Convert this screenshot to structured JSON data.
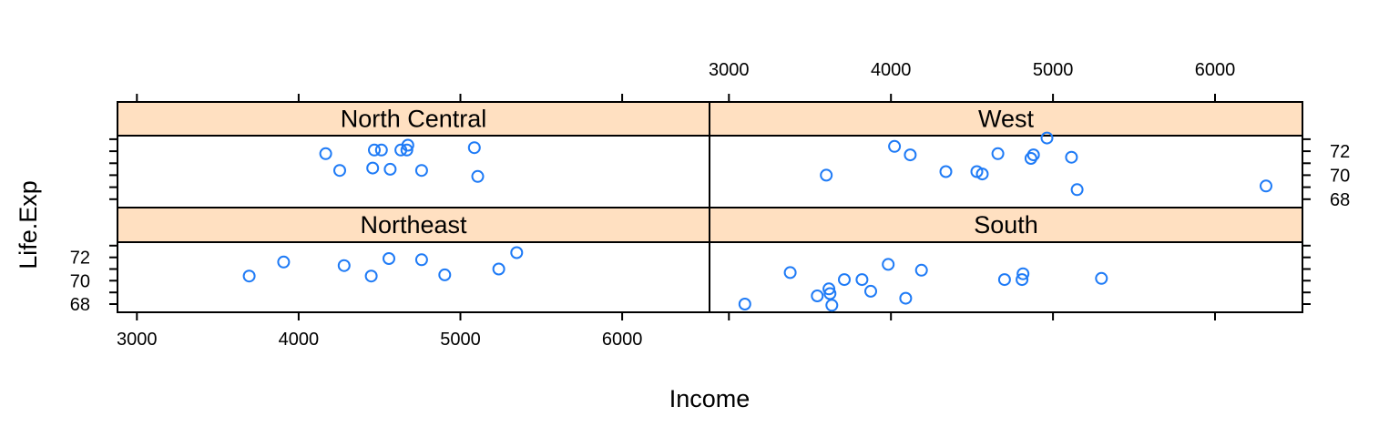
{
  "chart_data": {
    "type": "scatter",
    "xlabel": "Income",
    "ylabel": "Life.Exp",
    "xlim": [
      2880,
      6540
    ],
    "ylim": [
      67.3,
      73.3
    ],
    "x_ticks": [
      3000,
      4000,
      5000,
      6000
    ],
    "y_ticks": [
      68,
      70,
      72
    ],
    "colors": {
      "strip": "#FFE0C1",
      "point": "#1F7BF6",
      "frame": "#000000"
    },
    "panels": [
      {
        "name": "North Central",
        "points": [
          {
            "x": 4167,
            "y": 71.8
          },
          {
            "x": 4254,
            "y": 70.4
          },
          {
            "x": 4458,
            "y": 70.6
          },
          {
            "x": 4468,
            "y": 72.1
          },
          {
            "x": 4512,
            "y": 72.1
          },
          {
            "x": 4566,
            "y": 70.5
          },
          {
            "x": 4632,
            "y": 72.1
          },
          {
            "x": 4669,
            "y": 72.1
          },
          {
            "x": 4675,
            "y": 72.5
          },
          {
            "x": 4760,
            "y": 70.4
          },
          {
            "x": 5086,
            "y": 72.3
          },
          {
            "x": 5107,
            "y": 69.9
          }
        ]
      },
      {
        "name": "West",
        "points": [
          {
            "x": 3601,
            "y": 70.0
          },
          {
            "x": 4022,
            "y": 72.4
          },
          {
            "x": 4119,
            "y": 71.7
          },
          {
            "x": 4339,
            "y": 70.3
          },
          {
            "x": 4530,
            "y": 70.3
          },
          {
            "x": 4564,
            "y": 70.1
          },
          {
            "x": 4660,
            "y": 71.8
          },
          {
            "x": 4864,
            "y": 71.4
          },
          {
            "x": 4880,
            "y": 71.7
          },
          {
            "x": 4963,
            "y": 73.1
          },
          {
            "x": 5114,
            "y": 71.5
          },
          {
            "x": 5149,
            "y": 68.8
          },
          {
            "x": 6315,
            "y": 69.1
          }
        ]
      },
      {
        "name": "Northeast",
        "points": [
          {
            "x": 3694,
            "y": 70.4
          },
          {
            "x": 3907,
            "y": 71.6
          },
          {
            "x": 4281,
            "y": 71.3
          },
          {
            "x": 4449,
            "y": 70.4
          },
          {
            "x": 4558,
            "y": 71.9
          },
          {
            "x": 4760,
            "y": 71.8
          },
          {
            "x": 4903,
            "y": 70.5
          },
          {
            "x": 5237,
            "y": 71.0
          },
          {
            "x": 5348,
            "y": 72.4
          }
        ]
      },
      {
        "name": "South",
        "points": [
          {
            "x": 3098,
            "y": 68.0
          },
          {
            "x": 3378,
            "y": 70.7
          },
          {
            "x": 3545,
            "y": 68.7
          },
          {
            "x": 3617,
            "y": 69.3
          },
          {
            "x": 3624,
            "y": 68.9
          },
          {
            "x": 3635,
            "y": 67.9
          },
          {
            "x": 3712,
            "y": 70.1
          },
          {
            "x": 3821,
            "y": 70.1
          },
          {
            "x": 3875,
            "y": 69.1
          },
          {
            "x": 3983,
            "y": 71.4
          },
          {
            "x": 4091,
            "y": 68.5
          },
          {
            "x": 4188,
            "y": 70.9
          },
          {
            "x": 4701,
            "y": 70.1
          },
          {
            "x": 4809,
            "y": 70.1
          },
          {
            "x": 4815,
            "y": 70.6
          },
          {
            "x": 5299,
            "y": 70.2
          }
        ]
      }
    ]
  }
}
